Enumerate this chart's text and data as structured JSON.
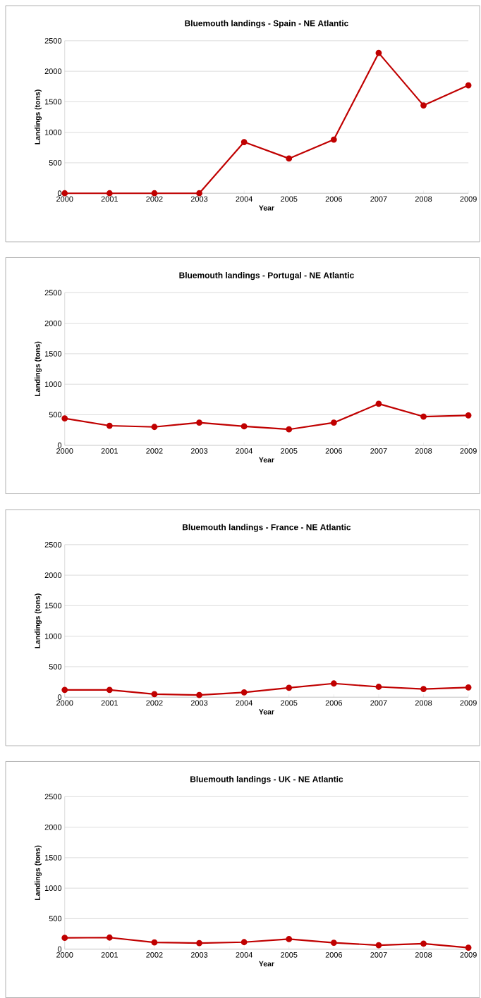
{
  "chart_data": [
    {
      "type": "line",
      "title": "Bluemouth landings  - Spain - NE Atlantic",
      "xlabel": "Year",
      "ylabel": "Landings (tons)",
      "categories": [
        "2000",
        "2001",
        "2002",
        "2003",
        "2004",
        "2005",
        "2006",
        "2007",
        "2008",
        "2009"
      ],
      "series": [
        {
          "color": "#c00000",
          "values": [
            0,
            0,
            0,
            0,
            840,
            570,
            880,
            2300,
            1440,
            1770
          ]
        }
      ],
      "ylim": [
        0,
        2500
      ],
      "yticks": [
        0,
        500,
        1000,
        1500,
        2000,
        2500
      ],
      "grid": "y",
      "marker": "circle"
    },
    {
      "type": "line",
      "title": "Bluemouth landings  - Portugal - NE Atlantic",
      "xlabel": "Year",
      "ylabel": "Landings (tons)",
      "categories": [
        "2000",
        "2001",
        "2002",
        "2003",
        "2004",
        "2005",
        "2006",
        "2007",
        "2008",
        "2009"
      ],
      "series": [
        {
          "color": "#c00000",
          "values": [
            440,
            320,
            300,
            370,
            310,
            260,
            370,
            680,
            470,
            490
          ]
        }
      ],
      "ylim": [
        0,
        2500
      ],
      "yticks": [
        0,
        500,
        1000,
        1500,
        2000,
        2500
      ],
      "grid": "y",
      "marker": "circle"
    },
    {
      "type": "line",
      "title": "Bluemouth landings  - France - NE Atlantic",
      "xlabel": "Year",
      "ylabel": "Landings (tons)",
      "categories": [
        "2000",
        "2001",
        "2002",
        "2003",
        "2004",
        "2005",
        "2006",
        "2007",
        "2008",
        "2009"
      ],
      "series": [
        {
          "color": "#c00000",
          "values": [
            120,
            120,
            50,
            35,
            80,
            155,
            225,
            170,
            135,
            160
          ]
        }
      ],
      "ylim": [
        0,
        2500
      ],
      "yticks": [
        0,
        500,
        1000,
        1500,
        2000,
        2500
      ],
      "grid": "y",
      "marker": "circle"
    },
    {
      "type": "line",
      "title": "Bluemouth landings  - UK - NE Atlantic",
      "xlabel": "Year",
      "ylabel": "Landings (tons)",
      "categories": [
        "2000",
        "2001",
        "2002",
        "2003",
        "2004",
        "2005",
        "2006",
        "2007",
        "2008",
        "2009"
      ],
      "series": [
        {
          "color": "#c00000",
          "values": [
            185,
            190,
            110,
            100,
            115,
            165,
            105,
            65,
            90,
            25
          ]
        }
      ],
      "ylim": [
        0,
        2500
      ],
      "yticks": [
        0,
        500,
        1000,
        1500,
        2000,
        2500
      ],
      "grid": "y",
      "marker": "circle"
    }
  ]
}
